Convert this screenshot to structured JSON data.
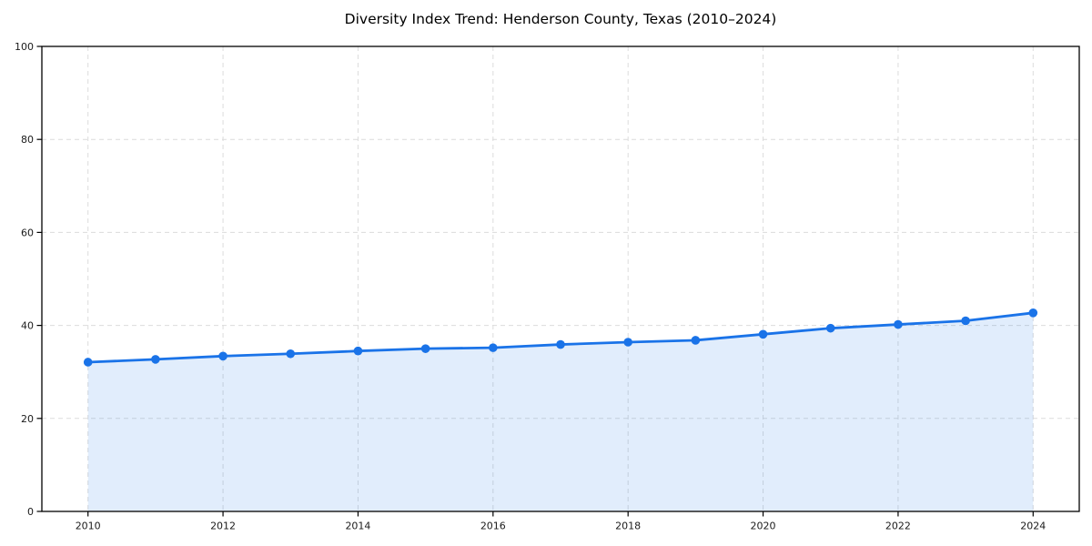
{
  "chart_data": {
    "type": "area",
    "title": "Diversity Index Trend: Henderson County, Texas (2010–2024)",
    "xlabel": "",
    "ylabel": "",
    "x": [
      2010,
      2011,
      2012,
      2013,
      2014,
      2015,
      2016,
      2017,
      2018,
      2019,
      2020,
      2021,
      2022,
      2023,
      2024
    ],
    "series": [
      {
        "name": "Diversity Index",
        "values": [
          32.1,
          32.7,
          33.4,
          33.9,
          34.5,
          35.0,
          35.2,
          35.9,
          36.4,
          36.8,
          38.1,
          39.4,
          40.2,
          41.0,
          42.7
        ]
      }
    ],
    "ylim": [
      0,
      100
    ],
    "yticks": [
      0,
      20,
      40,
      60,
      80,
      100
    ],
    "xticks": [
      2010,
      2012,
      2014,
      2016,
      2018,
      2020,
      2022,
      2024
    ],
    "grid": true,
    "grid_style": "dashed",
    "legend": "none",
    "colors": {
      "line": "#1a73e8",
      "marker": "#1a73e8",
      "fill": "rgba(26,115,232,0.13)",
      "grid": "#dcdcdc",
      "spine": "#000000",
      "tick_text": "#1a1a1a",
      "title_text": "#000000",
      "background": "#ffffff"
    }
  }
}
